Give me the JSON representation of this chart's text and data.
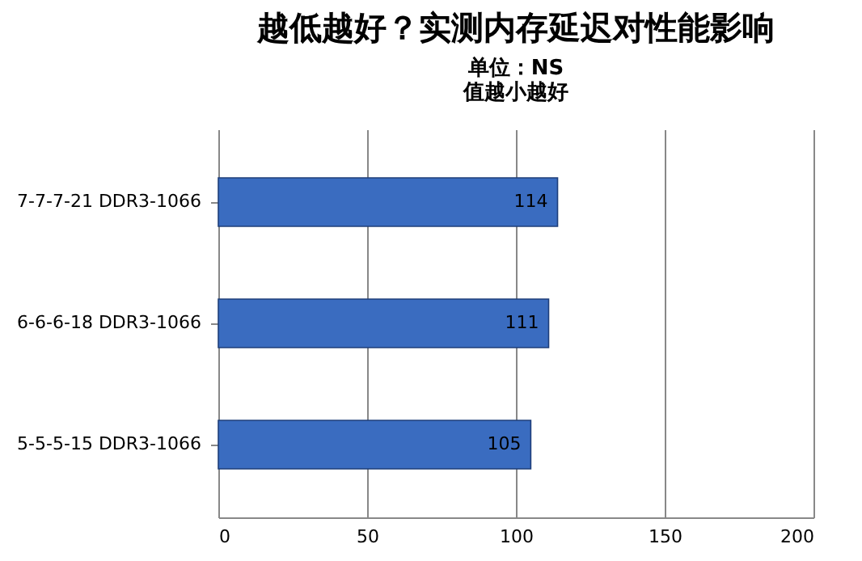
{
  "chart_data": {
    "type": "bar",
    "orientation": "horizontal",
    "title": "越低越好？实测内存延迟对性能影响",
    "subtitle": "单位：NS",
    "annotations": [
      "值越小越好"
    ],
    "categories": [
      "7-7-7-21 DDR3-1066",
      "6-6-6-18 DDR3-1066",
      "5-5-5-15 DDR3-1066"
    ],
    "values": [
      114,
      111,
      105
    ],
    "color": "#3a6cc0",
    "xlim": [
      0,
      200
    ],
    "xticks": [
      0,
      50,
      100,
      150,
      200
    ],
    "grid": "x",
    "data_labels": true
  }
}
